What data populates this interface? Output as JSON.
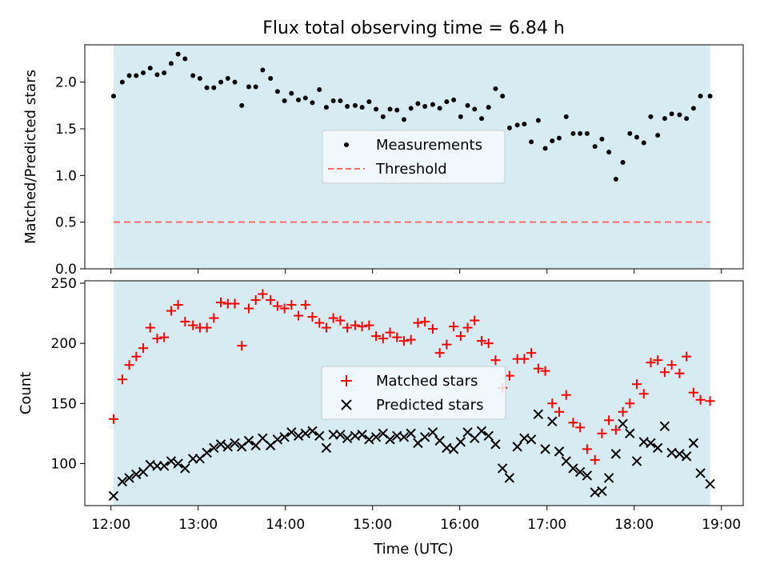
{
  "title": "Flux total observing time = 6.84 h",
  "xlabel": "Time (UTC)",
  "x_ticks": [
    "12:00",
    "13:00",
    "14:00",
    "15:00",
    "16:00",
    "17:00",
    "18:00",
    "19:00"
  ],
  "colors": {
    "shade": "#add8e6",
    "matched": "#ff0000",
    "predicted": "#000000",
    "threshold": "#ff6b6b",
    "measurement": "#000000"
  },
  "chart_data": [
    {
      "type": "scatter",
      "ylabel": "Matched/Predicted stars",
      "xlim": [
        11.7,
        19.25
      ],
      "ylim": [
        0.0,
        2.4
      ],
      "y_ticks": [
        "0.0",
        "0.5",
        "1.0",
        "1.5",
        "2.0"
      ],
      "y_tick_values": [
        0,
        0.5,
        1.0,
        1.5,
        2.0
      ],
      "observing_window": [
        12.03,
        18.87
      ],
      "legend": {
        "position": "center-right",
        "entries": [
          "Measurements",
          "Threshold"
        ]
      },
      "threshold": 0.5,
      "series": [
        {
          "name": "Measurements",
          "marker": "dot",
          "x": [
            12.03,
            12.13,
            12.21,
            12.29,
            12.37,
            12.45,
            12.53,
            12.61,
            12.69,
            12.77,
            12.85,
            12.94,
            13.02,
            13.1,
            13.18,
            13.26,
            13.34,
            13.42,
            13.5,
            13.58,
            13.66,
            13.74,
            13.83,
            13.91,
            13.99,
            14.07,
            14.15,
            14.23,
            14.31,
            14.39,
            14.47,
            14.55,
            14.63,
            14.71,
            14.8,
            14.88,
            14.96,
            15.04,
            15.12,
            15.2,
            15.28,
            15.36,
            15.44,
            15.52,
            15.6,
            15.69,
            15.77,
            15.85,
            15.93,
            16.01,
            16.09,
            16.17,
            16.25,
            16.33,
            16.41,
            16.49,
            16.57,
            16.66,
            16.74,
            16.82,
            16.9,
            16.98,
            17.06,
            17.14,
            17.22,
            17.3,
            17.38,
            17.46,
            17.55,
            17.63,
            17.71,
            17.79,
            17.87,
            17.95,
            18.03,
            18.11,
            18.19,
            18.27,
            18.35,
            18.43,
            18.52,
            18.6,
            18.68,
            18.76,
            18.87
          ],
          "y": [
            1.85,
            2.0,
            2.07,
            2.07,
            2.1,
            2.15,
            2.08,
            2.1,
            2.2,
            2.3,
            2.25,
            2.07,
            2.04,
            1.94,
            1.94,
            2.0,
            2.04,
            2.0,
            1.75,
            1.95,
            1.95,
            2.13,
            2.04,
            1.9,
            1.8,
            1.88,
            1.81,
            1.83,
            1.78,
            1.92,
            1.73,
            1.8,
            1.8,
            1.74,
            1.75,
            1.73,
            1.79,
            1.71,
            1.63,
            1.71,
            1.7,
            1.6,
            1.72,
            1.77,
            1.74,
            1.76,
            1.72,
            1.79,
            1.81,
            1.63,
            1.75,
            1.71,
            1.61,
            1.73,
            1.93,
            1.85,
            1.51,
            1.54,
            1.55,
            1.36,
            1.59,
            1.29,
            1.37,
            1.4,
            1.63,
            1.45,
            1.45,
            1.45,
            1.31,
            1.39,
            1.25,
            0.96,
            1.14,
            1.45,
            1.41,
            1.35,
            1.63,
            1.43,
            1.61,
            1.66,
            1.65,
            1.61,
            1.72,
            1.85,
            1.85
          ]
        },
        {
          "name": "Threshold",
          "style": "dashed",
          "x": [
            12.03,
            18.87
          ],
          "y": [
            0.5,
            0.5
          ]
        }
      ]
    },
    {
      "type": "scatter",
      "ylabel": "Count",
      "xlim": [
        11.7,
        19.25
      ],
      "ylim": [
        65,
        252
      ],
      "y_ticks": [
        "100",
        "150",
        "200",
        "250"
      ],
      "y_tick_values": [
        100,
        150,
        200,
        250
      ],
      "observing_window": [
        12.03,
        18.87
      ],
      "legend": {
        "position": "center-right",
        "entries": [
          "Matched stars",
          "Predicted stars"
        ]
      },
      "series": [
        {
          "name": "Matched stars",
          "marker": "plus",
          "x": [
            12.03,
            12.13,
            12.21,
            12.29,
            12.37,
            12.45,
            12.53,
            12.61,
            12.69,
            12.77,
            12.85,
            12.94,
            13.02,
            13.1,
            13.18,
            13.26,
            13.34,
            13.42,
            13.5,
            13.58,
            13.66,
            13.74,
            13.83,
            13.91,
            13.99,
            14.07,
            14.15,
            14.23,
            14.31,
            14.39,
            14.47,
            14.55,
            14.63,
            14.71,
            14.8,
            14.88,
            14.96,
            15.04,
            15.12,
            15.2,
            15.28,
            15.36,
            15.44,
            15.52,
            15.6,
            15.69,
            15.77,
            15.85,
            15.93,
            16.01,
            16.09,
            16.17,
            16.25,
            16.33,
            16.41,
            16.49,
            16.57,
            16.66,
            16.74,
            16.82,
            16.9,
            16.98,
            17.06,
            17.14,
            17.22,
            17.3,
            17.38,
            17.46,
            17.55,
            17.63,
            17.71,
            17.79,
            17.87,
            17.95,
            18.03,
            18.11,
            18.19,
            18.27,
            18.35,
            18.43,
            18.52,
            18.6,
            18.68,
            18.76,
            18.87
          ],
          "y": [
            137,
            170,
            182,
            189,
            196,
            213,
            204,
            205,
            227,
            232,
            218,
            215,
            213,
            213,
            221,
            234,
            233,
            233,
            198,
            229,
            236,
            241,
            236,
            231,
            229,
            232,
            223,
            232,
            222,
            217,
            213,
            221,
            219,
            213,
            215,
            214,
            215,
            206,
            204,
            209,
            205,
            202,
            203,
            217,
            218,
            212,
            192,
            199,
            214,
            206,
            213,
            219,
            202,
            200,
            186,
            163,
            173,
            187,
            187,
            192,
            179,
            177,
            150,
            143,
            157,
            134,
            130,
            112,
            103,
            125,
            136,
            128,
            143,
            150,
            166,
            158,
            184,
            186,
            176,
            182,
            175,
            189,
            159,
            153,
            152
          ]
        },
        {
          "name": "Predicted stars",
          "marker": "x",
          "x": [
            12.03,
            12.13,
            12.21,
            12.29,
            12.37,
            12.45,
            12.53,
            12.61,
            12.69,
            12.77,
            12.85,
            12.94,
            13.02,
            13.1,
            13.18,
            13.26,
            13.34,
            13.42,
            13.5,
            13.58,
            13.66,
            13.74,
            13.83,
            13.91,
            13.99,
            14.07,
            14.15,
            14.23,
            14.31,
            14.39,
            14.47,
            14.55,
            14.63,
            14.71,
            14.8,
            14.88,
            14.96,
            15.04,
            15.12,
            15.2,
            15.28,
            15.36,
            15.44,
            15.52,
            15.6,
            15.69,
            15.77,
            15.85,
            15.93,
            16.01,
            16.09,
            16.17,
            16.25,
            16.33,
            16.41,
            16.49,
            16.57,
            16.66,
            16.74,
            16.82,
            16.9,
            16.98,
            17.06,
            17.14,
            17.22,
            17.3,
            17.38,
            17.46,
            17.55,
            17.63,
            17.71,
            17.79,
            17.87,
            17.95,
            18.03,
            18.11,
            18.19,
            18.27,
            18.35,
            18.43,
            18.52,
            18.6,
            18.68,
            18.76,
            18.87
          ],
          "y": [
            73,
            85,
            88,
            91,
            93,
            99,
            98,
            98,
            102,
            100,
            96,
            104,
            104,
            109,
            113,
            116,
            114,
            117,
            114,
            119,
            115,
            121,
            115,
            120,
            122,
            126,
            123,
            125,
            127,
            123,
            113,
            124,
            124,
            121,
            123,
            124,
            120,
            122,
            125,
            120,
            123,
            122,
            125,
            117,
            122,
            126,
            119,
            113,
            112,
            118,
            126,
            121,
            127,
            123,
            116,
            96,
            88,
            114,
            121,
            120,
            141,
            112,
            135,
            110,
            102,
            96,
            93,
            90,
            76,
            77,
            88,
            108,
            133,
            125,
            102,
            118,
            117,
            113,
            131,
            109,
            108,
            106,
            117,
            92,
            83
          ]
        }
      ]
    }
  ]
}
